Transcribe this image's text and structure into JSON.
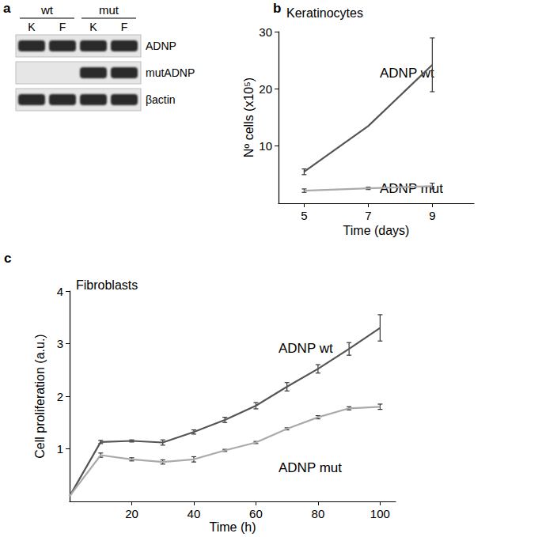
{
  "gel": {
    "panel": "a",
    "groups": [
      {
        "label": "wt",
        "lanes": [
          "K",
          "F"
        ]
      },
      {
        "label": "mut",
        "lanes": [
          "K",
          "F"
        ]
      }
    ],
    "rows": [
      {
        "label": "ADNP",
        "bands": [
          true,
          true,
          true,
          true
        ]
      },
      {
        "label": "mutADNP",
        "bands": [
          false,
          false,
          true,
          true
        ]
      },
      {
        "label": "βactin",
        "bands": [
          true,
          true,
          true,
          true
        ]
      }
    ]
  },
  "chart_data": [
    {
      "type": "line",
      "title": "Keratinocytes",
      "annotations": [
        "b"
      ],
      "xlabel": "Time (days)",
      "ylabel": "Nº cells (x10⁵)",
      "x": [
        5,
        7,
        9
      ],
      "series": [
        {
          "name": "ADNP wt",
          "color": "#555555",
          "values": [
            5.5,
            13.5,
            24.2
          ],
          "errors": [
            0.5,
            0,
            4.7
          ]
        },
        {
          "name": "ADNP mut",
          "color": "#aaaaaa",
          "values": [
            2.2,
            2.6,
            3.0
          ],
          "errors": [
            0.3,
            0.2,
            0.5
          ]
        }
      ],
      "xlim": [
        4.2,
        10.3
      ],
      "xticks": [
        5,
        7,
        9
      ],
      "ylim": [
        0,
        30
      ],
      "yticks": [
        10,
        20,
        30
      ],
      "grid": false
    },
    {
      "type": "line",
      "title": "Fibroblasts",
      "annotations": [
        "c"
      ],
      "xlabel": "Time (h)",
      "ylabel": "Cell proliferation (a.u.)",
      "x": [
        0,
        10,
        20,
        30,
        40,
        50,
        60,
        70,
        80,
        90,
        100
      ],
      "series": [
        {
          "name": "ADNP wt",
          "color": "#555555",
          "values": [
            0.1,
            1.13,
            1.15,
            1.12,
            1.32,
            1.55,
            1.82,
            2.18,
            2.52,
            2.9,
            3.3
          ],
          "errors": [
            0,
            0.03,
            0.02,
            0.05,
            0.04,
            0.05,
            0.06,
            0.08,
            0.08,
            0.12,
            0.25
          ]
        },
        {
          "name": "ADNP mut",
          "color": "#aaaaaa",
          "values": [
            0.1,
            0.88,
            0.8,
            0.75,
            0.8,
            0.97,
            1.12,
            1.38,
            1.6,
            1.77,
            1.8
          ],
          "errors": [
            0,
            0.04,
            0.03,
            0.04,
            0.05,
            0.02,
            0.02,
            0.02,
            0.03,
            0.03,
            0.05
          ]
        }
      ],
      "xlim": [
        0,
        105
      ],
      "xticks": [
        20,
        40,
        60,
        80,
        100
      ],
      "ylim": [
        0,
        4
      ],
      "yticks": [
        1,
        2,
        3,
        4
      ],
      "grid": false
    }
  ]
}
